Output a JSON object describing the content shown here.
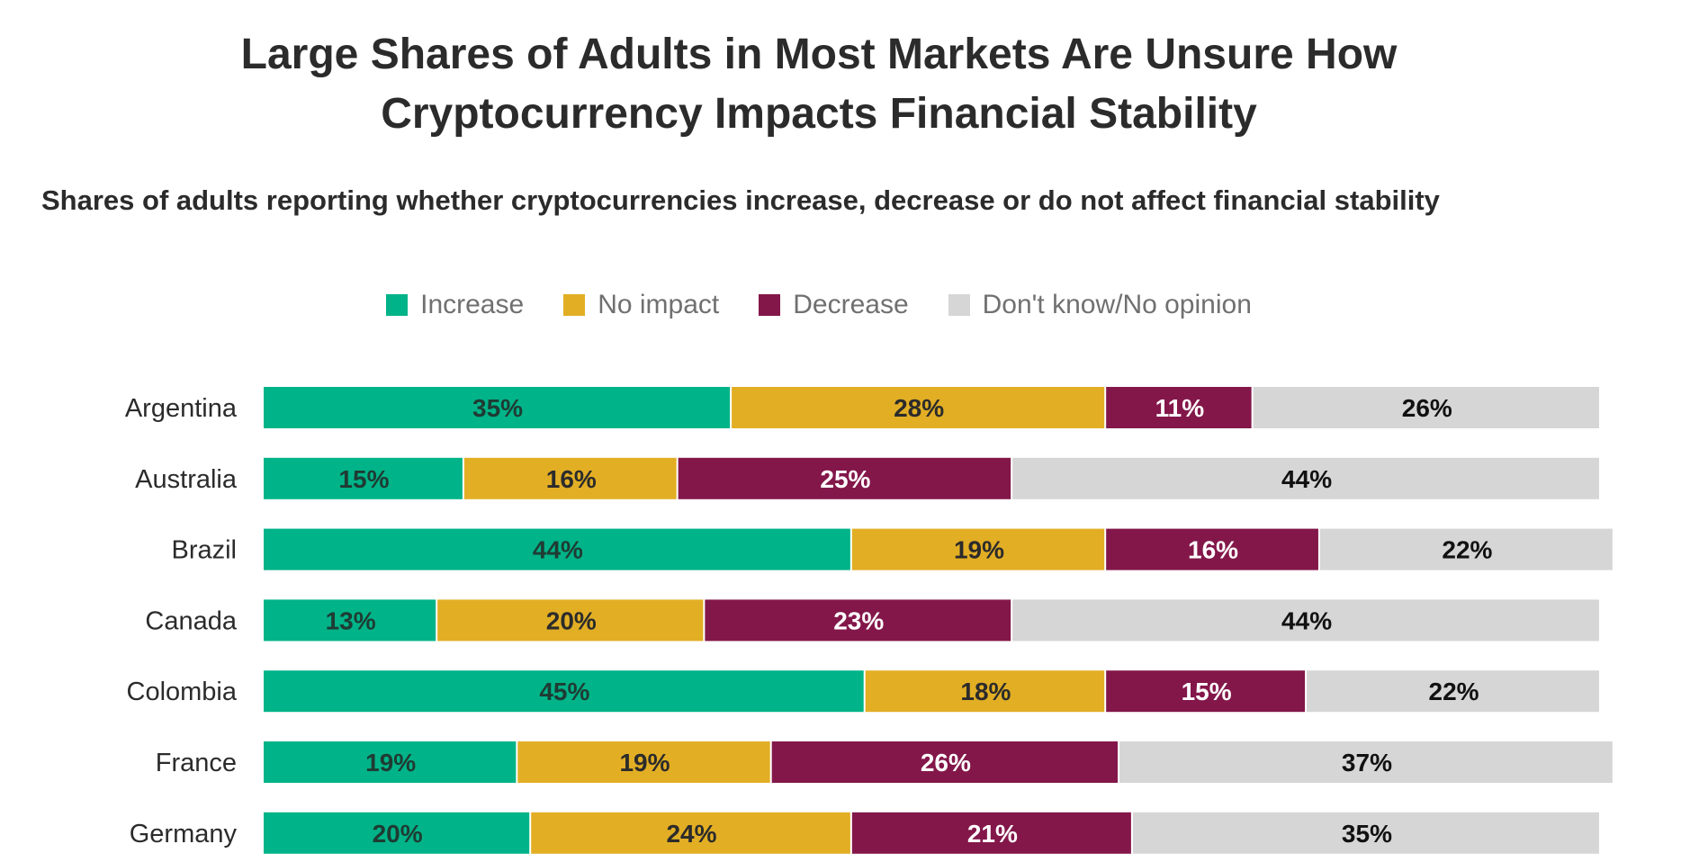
{
  "chart_data": {
    "type": "bar",
    "orientation": "horizontal",
    "stacked": true,
    "title": "Large Shares of Adults in Most Markets Are Unsure How Cryptocurrency Impacts Financial Stability",
    "title_lines": [
      "Large Shares of Adults in Most Markets Are Unsure How",
      "Cryptocurrency Impacts Financial Stability"
    ],
    "subtitle": "Shares of adults reporting whether cryptocurrencies increase, decrease or do not affect financial stability",
    "xlim": [
      0,
      100
    ],
    "legend_position": "top-center",
    "categories": [
      "Argentina",
      "Australia",
      "Brazil",
      "Canada",
      "Colombia",
      "France",
      "Germany"
    ],
    "series": [
      {
        "name": "Increase",
        "color": "#00b388",
        "label_color": "#1f3b33",
        "values": [
          35,
          15,
          44,
          13,
          45,
          19,
          20
        ],
        "labels": [
          "35%",
          "15%",
          "44%",
          "13%",
          "45%",
          "19%",
          "20%"
        ]
      },
      {
        "name": "No impact",
        "color": "#e2ae24",
        "label_color": "#2b2b2b",
        "values": [
          28,
          16,
          19,
          20,
          18,
          19,
          24
        ],
        "labels": [
          "28%",
          "16%",
          "19%",
          "20%",
          "18%",
          "19%",
          "24%"
        ]
      },
      {
        "name": "Decrease",
        "color": "#83174a",
        "label_color": "#ffffff",
        "values": [
          11,
          25,
          16,
          23,
          15,
          26,
          21
        ],
        "labels": [
          "11%",
          "25%",
          "16%",
          "23%",
          "15%",
          "26%",
          "21%"
        ]
      },
      {
        "name": "Don't know/No opinion",
        "color": "#d6d6d6",
        "label_color": "#111111",
        "values": [
          26,
          44,
          22,
          44,
          22,
          37,
          35
        ],
        "labels": [
          "26%",
          "44%",
          "22%",
          "44%",
          "22%",
          "37%",
          "35%"
        ]
      }
    ]
  }
}
